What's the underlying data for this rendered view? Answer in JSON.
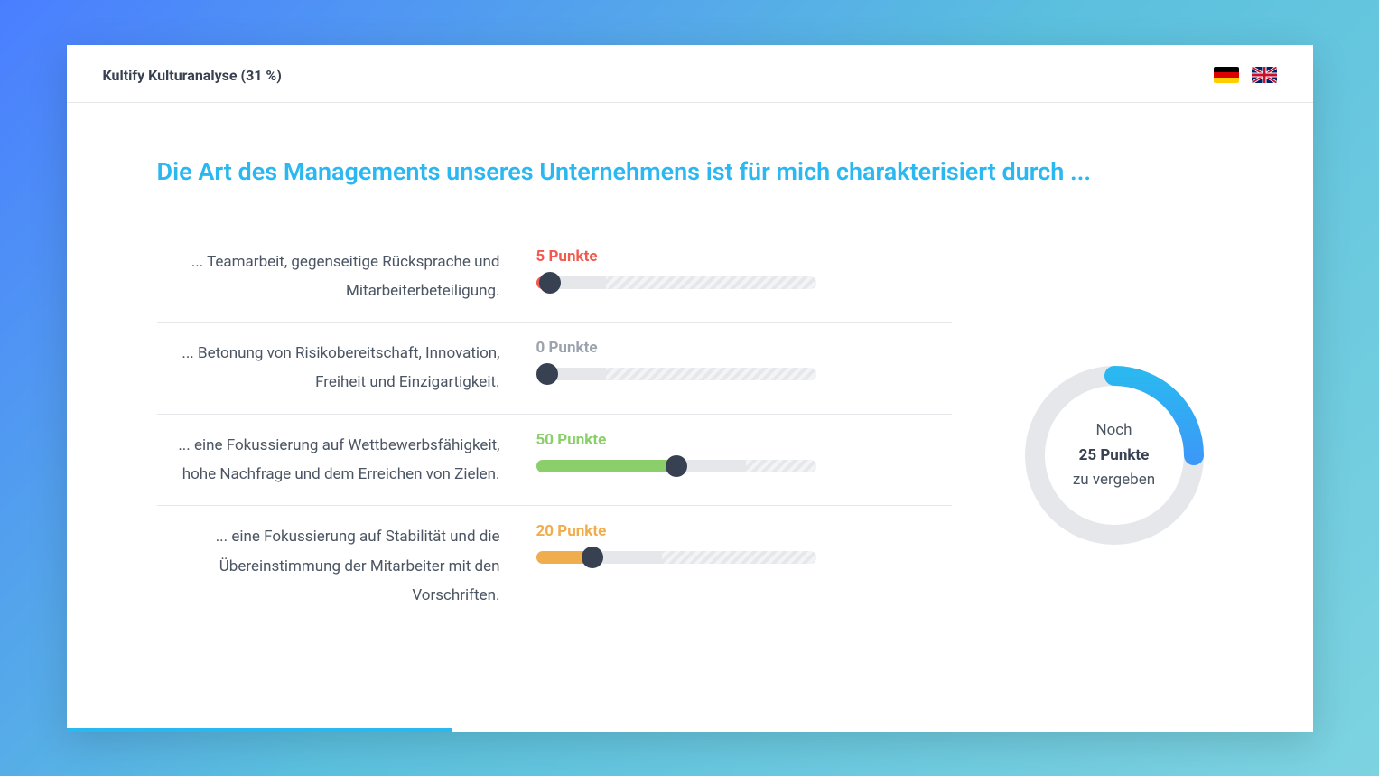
{
  "header": {
    "title": "Kultify Kulturanalyse (31 %)"
  },
  "question": {
    "title": "Die Art des Managements unseres Unternehmens ist für mich charakterisiert durch ..."
  },
  "sliders": [
    {
      "label": "... Teamarbeit, gegenseitige Rücksprache und Mitarbeiterbeteiligung.",
      "points_text": "5 Punkte",
      "value": 5,
      "color": "#f05a4f",
      "fill_percent": 5,
      "hatch_percent": 75
    },
    {
      "label": "... Betonung von Risikobereitschaft, Innovation, Freiheit und Einzigartigkeit.",
      "points_text": "0 Punkte",
      "value": 0,
      "color": "#9ca3af",
      "fill_percent": 0,
      "hatch_percent": 75
    },
    {
      "label": "... eine Fokussierung auf Wettbewerbsfähigkeit, hohe Nachfrage und dem Erreichen von Zielen.",
      "points_text": "50 Punkte",
      "value": 50,
      "color": "#8bcf6a",
      "fill_percent": 50,
      "hatch_percent": 25
    },
    {
      "label": "... eine Fokussierung auf Stabilität und die Übereinstimmung der Mitarbeiter mit den Vorschriften.",
      "points_text": "20 Punkte",
      "value": 20,
      "color": "#f0ad4e",
      "fill_percent": 20,
      "hatch_percent": 55
    }
  ],
  "gauge": {
    "text_line1": "Noch",
    "points_text": "25 Punkte",
    "text_line3": "zu vergeben",
    "remaining_percent": 25,
    "ring_bg_color": "#e5e7eb",
    "ring_fill_start": "#2bb7f0",
    "ring_fill_end": "#4a7eff"
  },
  "progress": {
    "percent": 31,
    "color": "#2bb7f0"
  },
  "colors": {
    "text_primary": "#374151",
    "text_secondary": "#4b5563",
    "accent": "#2bb7f0"
  }
}
